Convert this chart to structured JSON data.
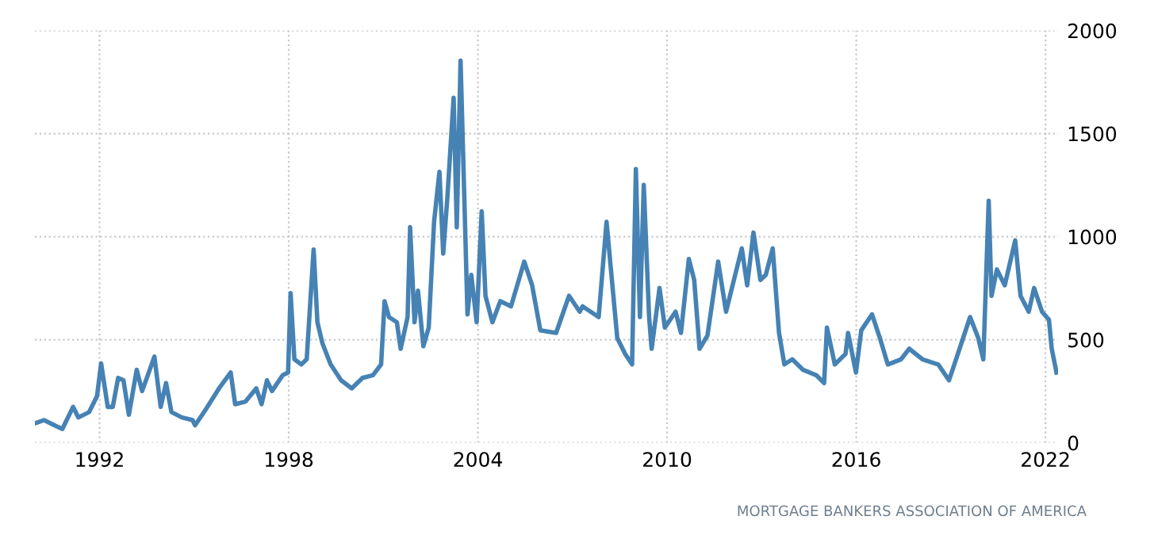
{
  "chart_data": {
    "type": "line",
    "x": [
      1990.0,
      1990.24,
      1990.57,
      1990.82,
      1991.16,
      1991.33,
      1991.67,
      1991.92,
      1992.05,
      1992.26,
      1992.42,
      1992.59,
      1992.76,
      1992.93,
      1993.18,
      1993.35,
      1993.52,
      1993.74,
      1993.94,
      1994.11,
      1994.28,
      1994.61,
      1994.95,
      1995.03,
      1995.37,
      1995.79,
      1996.16,
      1996.3,
      1996.63,
      1996.97,
      1997.14,
      1997.31,
      1997.47,
      1997.81,
      1997.98,
      1998.06,
      1998.18,
      1998.4,
      1998.57,
      1998.79,
      1998.91,
      1999.07,
      1999.33,
      1999.66,
      2000.0,
      2000.34,
      2000.67,
      2000.93,
      2001.04,
      2001.18,
      2001.43,
      2001.55,
      2001.77,
      2001.85,
      2001.99,
      2002.1,
      2002.27,
      2002.44,
      2002.61,
      2002.78,
      2002.9,
      2003.03,
      2003.23,
      2003.33,
      2003.45,
      2003.54,
      2003.67,
      2003.79,
      2003.96,
      2004.12,
      2004.24,
      2004.46,
      2004.71,
      2005.05,
      2005.47,
      2005.72,
      2005.98,
      2006.48,
      2006.89,
      2007.23,
      2007.32,
      2007.83,
      2008.08,
      2008.25,
      2008.42,
      2008.67,
      2008.89,
      2009.01,
      2009.14,
      2009.26,
      2009.43,
      2009.51,
      2009.76,
      2009.93,
      2010.27,
      2010.44,
      2010.69,
      2010.86,
      2011.03,
      2011.28,
      2011.62,
      2011.87,
      2012.12,
      2012.37,
      2012.54,
      2012.74,
      2012.96,
      2013.13,
      2013.35,
      2013.55,
      2013.72,
      2013.97,
      2014.31,
      2014.73,
      2014.98,
      2015.07,
      2015.32,
      2015.66,
      2015.74,
      2015.99,
      2016.16,
      2016.5,
      2016.75,
      2017.0,
      2017.42,
      2017.68,
      2018.1,
      2018.6,
      2018.94,
      2019.11,
      2019.61,
      2019.87,
      2020.03,
      2020.2,
      2020.29,
      2020.46,
      2020.71,
      2021.04,
      2021.21,
      2021.47,
      2021.64,
      2021.89,
      2022.11,
      2022.2,
      2022.35
    ],
    "series": [
      {
        "color": "#4682b4",
        "values": [
          97,
          110,
          85,
          67,
          174,
          123,
          149,
          226,
          385,
          174,
          174,
          315,
          303,
          136,
          354,
          251,
          323,
          418,
          174,
          290,
          149,
          123,
          110,
          85,
          162,
          264,
          341,
          187,
          200,
          264,
          187,
          303,
          251,
          328,
          341,
          726,
          405,
          380,
          405,
          938,
          585,
          482,
          380,
          303,
          264,
          315,
          328,
          380,
          687,
          610,
          585,
          456,
          610,
          1046,
          585,
          738,
          469,
          559,
          1072,
          1315,
          918,
          1187,
          1674,
          1046,
          1854,
          1354,
          623,
          815,
          585,
          1123,
          713,
          585,
          687,
          662,
          879,
          764,
          546,
          533,
          713,
          636,
          662,
          610,
          1072,
          790,
          508,
          431,
          380,
          1328,
          610,
          1251,
          610,
          456,
          751,
          559,
          636,
          533,
          892,
          790,
          456,
          520,
          879,
          636,
          790,
          943,
          764,
          1020,
          790,
          815,
          943,
          533,
          380,
          405,
          354,
          328,
          290,
          559,
          380,
          431,
          533,
          341,
          546,
          623,
          508,
          380,
          405,
          456,
          405,
          380,
          303,
          380,
          610,
          508,
          405,
          1174,
          713,
          841,
          764,
          982,
          713,
          636,
          751,
          636,
          597,
          456,
          341
        ]
      }
    ],
    "xlim": [
      1989.95,
      2022.4
    ],
    "ylim": [
      0,
      2000
    ],
    "xticks": [
      1992,
      1998,
      2004,
      2010,
      2016,
      2022
    ],
    "yticks": [
      0,
      500,
      1000,
      1500,
      2000
    ],
    "grid": true,
    "legend": false,
    "annotations": [
      "MORTGAGE BANKERS ASSOCIATION OF AMERICA"
    ]
  }
}
